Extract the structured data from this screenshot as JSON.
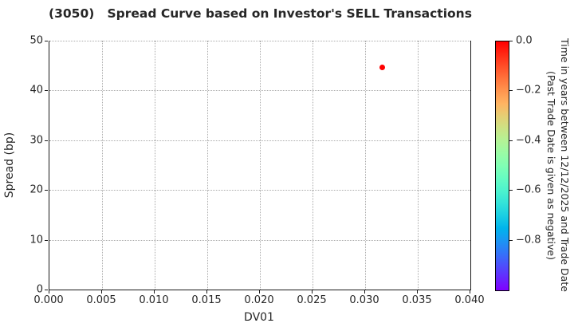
{
  "chart_data": {
    "type": "scatter",
    "title": "(3050)   Spread Curve based on Investor's SELL Transactions",
    "xlabel": "DV01",
    "ylabel": "Spread (bp)",
    "xlim": [
      0.0,
      0.04
    ],
    "ylim": [
      0,
      50
    ],
    "x_ticks": [
      0.0,
      0.005,
      0.01,
      0.015,
      0.02,
      0.025,
      0.03,
      0.035,
      0.04
    ],
    "x_tick_labels": [
      "0.000",
      "0.005",
      "0.010",
      "0.015",
      "0.020",
      "0.025",
      "0.030",
      "0.035",
      "0.040"
    ],
    "y_ticks": [
      0,
      10,
      20,
      30,
      40,
      50
    ],
    "y_tick_labels": [
      "0",
      "10",
      "20",
      "30",
      "40",
      "50"
    ],
    "grid": true,
    "grid_style": "dotted",
    "marker_size_px": 7,
    "points": [
      {
        "x": 0.0316,
        "y": 44.6,
        "c": 0.0,
        "color": "#ff0000"
      }
    ],
    "colorbar": {
      "colormap": "rainbow",
      "vmin": -1.0,
      "vmax": 0.0,
      "ticks": [
        0.0,
        -0.2,
        -0.4,
        -0.6,
        -0.8
      ],
      "tick_labels": [
        "0.0",
        "−0.2",
        "−0.4",
        "−0.6",
        "−0.8"
      ],
      "label_line1": "Time in years between 12/12/2025 and Trade Date",
      "label_line2": "(Past Trade Date is given as negative)"
    }
  }
}
